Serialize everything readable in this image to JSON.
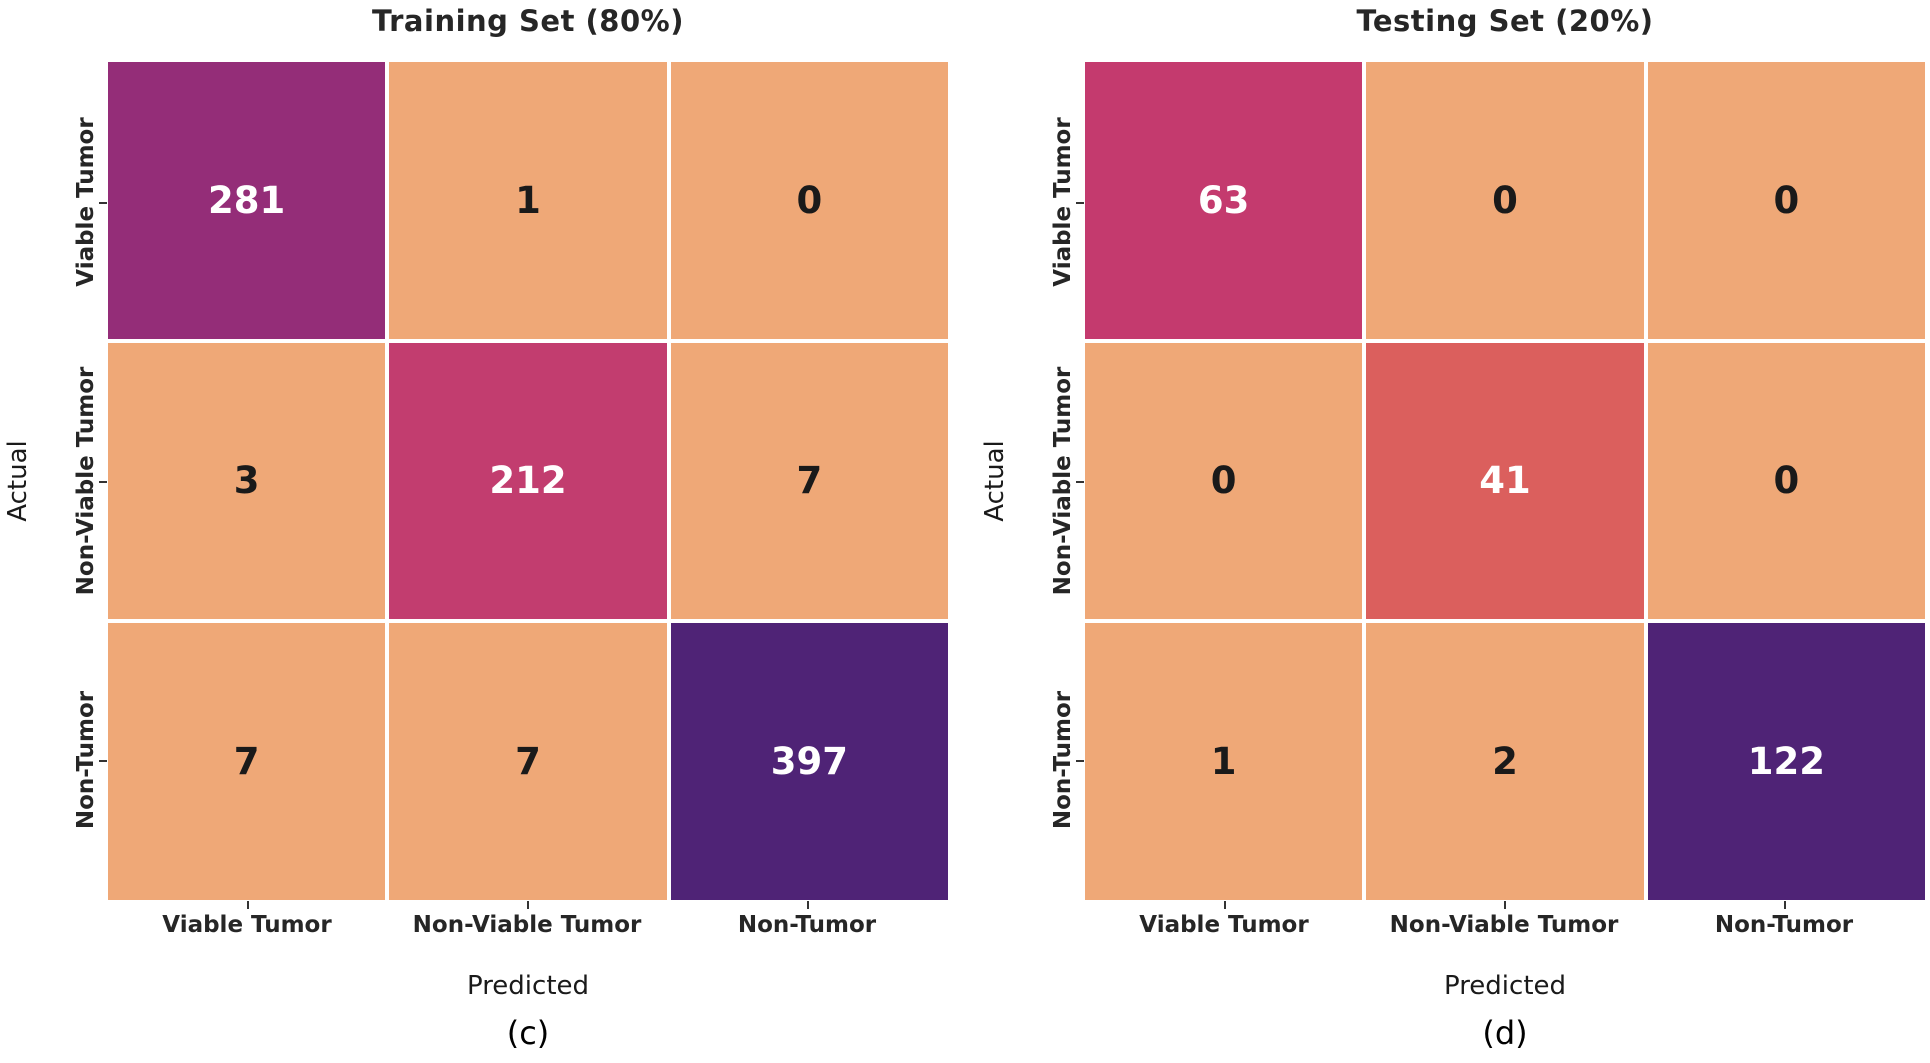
{
  "figure": {
    "background": "#ffffff",
    "grid_line_color": "#ffffff",
    "text_color": "#262626",
    "colormap_name": "flare"
  },
  "panels": [
    {
      "title": "Training Set (80%)",
      "caption": "(c)",
      "xlabel": "Predicted",
      "ylabel": "Actual",
      "x_tick_labels": [
        "Viable Tumor",
        "Non-Viable Tumor",
        "Non-Tumor"
      ],
      "y_tick_labels": [
        "Viable Tumor",
        "Non-Viable Tumor",
        "Non-Tumor"
      ],
      "cell_bg": [
        [
          "#942D78",
          "#EFA877",
          "#EFA877"
        ],
        [
          "#EFA877",
          "#C23D6F",
          "#EFA877"
        ],
        [
          "#EFA877",
          "#EFA877",
          "#4F2376"
        ]
      ],
      "cell_fg": [
        [
          "#ffffff",
          "#1a1a1a",
          "#1a1a1a"
        ],
        [
          "#1a1a1a",
          "#ffffff",
          "#1a1a1a"
        ],
        [
          "#1a1a1a",
          "#1a1a1a",
          "#ffffff"
        ]
      ]
    },
    {
      "title": "Testing Set (20%)",
      "caption": "(d)",
      "xlabel": "Predicted",
      "ylabel": "Actual",
      "x_tick_labels": [
        "Viable Tumor",
        "Non-Viable Tumor",
        "Non-Tumor"
      ],
      "y_tick_labels": [
        "Viable Tumor",
        "Non-Viable Tumor",
        "Non-Tumor"
      ],
      "cell_bg": [
        [
          "#C43A6E",
          "#EFA877",
          "#EFA877"
        ],
        [
          "#EFA877",
          "#DB5F5D",
          "#EFA877"
        ],
        [
          "#EFA877",
          "#EFA877",
          "#4F2376"
        ]
      ],
      "cell_fg": [
        [
          "#ffffff",
          "#1a1a1a",
          "#1a1a1a"
        ],
        [
          "#1a1a1a",
          "#ffffff",
          "#1a1a1a"
        ],
        [
          "#1a1a1a",
          "#1a1a1a",
          "#ffffff"
        ]
      ]
    }
  ],
  "chart_data": [
    {
      "type": "heatmap",
      "title": "Training Set (80%)",
      "xlabel": "Predicted",
      "ylabel": "Actual",
      "x_categories": [
        "Viable Tumor",
        "Non-Viable Tumor",
        "Non-Tumor"
      ],
      "y_categories": [
        "Viable Tumor",
        "Non-Viable Tumor",
        "Non-Tumor"
      ],
      "values": [
        [
          281,
          1,
          0
        ],
        [
          3,
          212,
          7
        ],
        [
          7,
          7,
          397
        ]
      ],
      "caption": "(c)",
      "annotations": true,
      "legend": "none",
      "grid": false
    },
    {
      "type": "heatmap",
      "title": "Testing Set (20%)",
      "xlabel": "Predicted",
      "ylabel": "Actual",
      "x_categories": [
        "Viable Tumor",
        "Non-Viable Tumor",
        "Non-Tumor"
      ],
      "y_categories": [
        "Viable Tumor",
        "Non-Viable Tumor",
        "Non-Tumor"
      ],
      "values": [
        [
          63,
          0,
          0
        ],
        [
          0,
          41,
          0
        ],
        [
          1,
          2,
          122
        ]
      ],
      "caption": "(d)",
      "annotations": true,
      "legend": "none",
      "grid": false
    }
  ]
}
